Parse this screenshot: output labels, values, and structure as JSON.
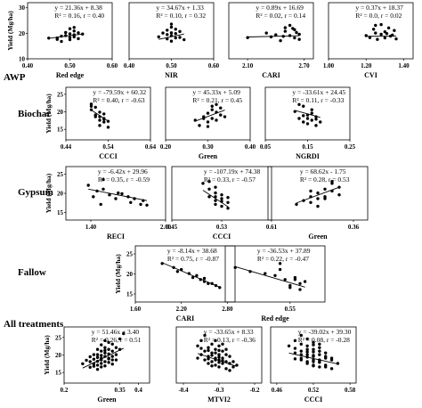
{
  "groups": [
    "AWP",
    "Biochar",
    "Gypsum",
    "Fallow",
    "All treatments"
  ],
  "chart_data": [
    {
      "type": "scatter",
      "group": "AWP",
      "xlabel": "Red edge",
      "ylabel": "Yield (Mg/ha)",
      "y_ticks": [
        10,
        20,
        30
      ],
      "xlim": [
        0.4,
        0.6
      ],
      "ylim": [
        10,
        32
      ],
      "x_ticks": [
        "0.40",
        "0.50",
        "0.60"
      ],
      "show_y_ticks": true,
      "eq": "y = 21.36x + 8.38",
      "stats": "R² = 0.16, r = 0.40",
      "line": {
        "slope": 21.36,
        "intercept": 8.38
      },
      "x": [
        0.45,
        0.47,
        0.48,
        0.49,
        0.49,
        0.5,
        0.5,
        0.5,
        0.51,
        0.51,
        0.51,
        0.52,
        0.52,
        0.53,
        0.47,
        0.5,
        0.48,
        0.51
      ],
      "y": [
        18.1,
        18.2,
        16.8,
        19.1,
        20.3,
        17.5,
        19.8,
        21.8,
        18.6,
        20.9,
        19.4,
        17.9,
        20.2,
        19.7,
        17.6,
        18.3,
        18.9,
        22.3
      ]
    },
    {
      "type": "scatter",
      "group": "AWP",
      "xlabel": "NIR",
      "ylabel": "",
      "y_ticks": [],
      "xlim": [
        0.4,
        0.6
      ],
      "ylim": [
        10,
        32
      ],
      "x_ticks": [
        "0.40",
        "0.50",
        "0.60"
      ],
      "show_y_ticks": false,
      "eq": "y = 34.67x + 1.33",
      "stats": "R² = 0.10, r = 0.32",
      "line": {
        "slope": 34.67,
        "intercept": 1.33
      },
      "x": [
        0.47,
        0.48,
        0.49,
        0.49,
        0.5,
        0.5,
        0.5,
        0.51,
        0.51,
        0.52,
        0.52,
        0.53,
        0.5,
        0.49,
        0.51,
        0.5
      ],
      "y": [
        18.6,
        20.1,
        17.8,
        21.2,
        19.1,
        22.4,
        16.9,
        19.9,
        21.6,
        18.4,
        20.7,
        17.5,
        23.6,
        19.5,
        18.2,
        20.2
      ]
    },
    {
      "type": "scatter",
      "group": "AWP",
      "xlabel": "CARI",
      "ylabel": "",
      "y_ticks": [],
      "xlim": [
        1.9,
        2.8
      ],
      "ylim": [
        10,
        32
      ],
      "x_ticks": [
        "2.10",
        "2.70"
      ],
      "show_y_ticks": false,
      "eq": "y = 0.89x + 16.69",
      "stats": "R² = 0.02, r = 0.14",
      "line": {
        "slope": 0.89,
        "intercept": 16.69
      },
      "x": [
        2.1,
        2.3,
        2.35,
        2.45,
        2.5,
        2.5,
        2.55,
        2.6,
        2.6,
        2.62,
        2.65,
        2.55,
        2.65,
        2.4,
        2.58,
        2.48
      ],
      "y": [
        18.3,
        20.1,
        18.6,
        17.1,
        20.8,
        22.2,
        19.1,
        21.4,
        18.2,
        20.3,
        19.6,
        23.1,
        17.6,
        19.4,
        21.9,
        18.8
      ]
    },
    {
      "type": "scatter",
      "group": "AWP",
      "xlabel": "CVI",
      "ylabel": "",
      "y_ticks": [],
      "xlim": [
        1.0,
        1.45
      ],
      "ylim": [
        10,
        32
      ],
      "x_ticks": [
        "1.00",
        "1.20",
        "1.40"
      ],
      "show_y_ticks": false,
      "eq": "y = 0.37x + 18.37",
      "stats": "R² = 0.0, r = 0.02",
      "line": {
        "slope": 0.37,
        "intercept": 18.37
      },
      "x": [
        1.2,
        1.22,
        1.24,
        1.25,
        1.26,
        1.28,
        1.3,
        1.3,
        1.32,
        1.34,
        1.35,
        1.36,
        1.28,
        1.33,
        1.25,
        1.31
      ],
      "y": [
        19.1,
        18.3,
        21.6,
        23.1,
        17.6,
        19.6,
        20.6,
        18.2,
        22.1,
        19.3,
        21.1,
        17.8,
        23.4,
        18.9,
        20.1,
        19.9
      ]
    },
    {
      "type": "scatter",
      "group": "Biochar",
      "xlabel": "CCCI",
      "ylabel": "Yield (Mg/ha)",
      "y_ticks": [
        15,
        20,
        25
      ],
      "xlim": [
        0.44,
        0.64
      ],
      "ylim": [
        12,
        27
      ],
      "x_ticks": [
        "0.44",
        "0.54",
        "0.64"
      ],
      "show_y_ticks": true,
      "eq": "y = -79.59x + 60.32",
      "stats": "R² = 0.40, r = -0.63",
      "line": {
        "slope": -79.59,
        "intercept": 60.32
      },
      "x": [
        0.5,
        0.5,
        0.51,
        0.51,
        0.52,
        0.52,
        0.52,
        0.53,
        0.53,
        0.53,
        0.54,
        0.54,
        0.51,
        0.52,
        0.53,
        0.5
      ],
      "y": [
        21.6,
        20.6,
        21.3,
        19.1,
        18.6,
        17.6,
        16.1,
        18.1,
        17.1,
        19.4,
        17.3,
        15.6,
        18.6,
        19.9,
        17.9,
        22.2
      ]
    },
    {
      "type": "scatter",
      "group": "Biochar",
      "xlabel": "Green",
      "ylabel": "",
      "y_ticks": [],
      "xlim": [
        0.2,
        0.4
      ],
      "ylim": [
        12,
        27
      ],
      "x_ticks": [
        "0.20",
        "0.30",
        "0.40"
      ],
      "show_y_ticks": false,
      "eq": "y = 45.33x + 5.09",
      "stats": "R² = 0.21, r = 0.45",
      "line": {
        "slope": 45.33,
        "intercept": 5.09
      },
      "x": [
        0.27,
        0.28,
        0.29,
        0.3,
        0.3,
        0.31,
        0.31,
        0.32,
        0.32,
        0.33,
        0.33,
        0.34,
        0.3,
        0.31,
        0.29,
        0.32
      ],
      "y": [
        17.6,
        16.1,
        18.6,
        17.1,
        19.6,
        18.1,
        20.6,
        17.6,
        22.1,
        19.1,
        21.1,
        18.6,
        15.8,
        21.6,
        18.1,
        19.9
      ]
    },
    {
      "type": "scatter",
      "group": "Biochar",
      "xlabel": "NGRDI",
      "ylabel": "",
      "y_ticks": [],
      "xlim": [
        0.05,
        0.25
      ],
      "ylim": [
        12,
        27
      ],
      "x_ticks": [
        "0.05",
        "0.15",
        "0.25"
      ],
      "show_y_ticks": false,
      "eq": "y = -33.61x + 24.45",
      "stats": "R² = 0.11, r = -0.33",
      "line": {
        "slope": -33.61,
        "intercept": 24.45
      },
      "x": [
        0.12,
        0.13,
        0.14,
        0.14,
        0.15,
        0.15,
        0.16,
        0.16,
        0.17,
        0.17,
        0.18,
        0.13,
        0.15,
        0.16,
        0.14,
        0.17
      ],
      "y": [
        20.1,
        18.1,
        21.6,
        17.1,
        19.1,
        16.6,
        20.6,
        17.6,
        18.6,
        16.1,
        17.1,
        22.1,
        18.1,
        19.6,
        18.9,
        17.9
      ]
    },
    {
      "type": "scatter",
      "group": "Gypsum",
      "xlabel": "RECI",
      "ylabel": "Yield (Mg/ha)",
      "y_ticks": [
        15,
        20,
        25
      ],
      "xlim": [
        1.2,
        2.0
      ],
      "ylim": [
        13,
        27
      ],
      "x_ticks": [
        "1.40",
        "2.00"
      ],
      "show_y_ticks": true,
      "eq": "y = -6.42x + 29.96",
      "stats": "R² = 0.35, r = -0.59",
      "line": {
        "slope": -6.42,
        "intercept": 29.96
      },
      "x": [
        1.38,
        1.42,
        1.45,
        1.48,
        1.5,
        1.55,
        1.6,
        1.65,
        1.7,
        1.72,
        1.75,
        1.8,
        1.82,
        1.85,
        1.5,
        1.62
      ],
      "y": [
        22.1,
        19.1,
        20.6,
        17.1,
        21.1,
        19.6,
        18.6,
        19.9,
        19.1,
        17.6,
        18.6,
        17.1,
        18.1,
        16.9,
        23.6,
        20.1
      ]
    },
    {
      "type": "scatter",
      "group": "Gypsum",
      "xlabel": "CCCI",
      "ylabel": "",
      "y_ticks": [],
      "xlim": [
        0.45,
        0.61
      ],
      "ylim": [
        13,
        27
      ],
      "x_ticks": [
        "0.45",
        "0.53",
        "0.61"
      ],
      "show_y_ticks": false,
      "eq": "y = -107.19x + 74.38",
      "stats": "R² = 0.33, r = -0.57",
      "line": {
        "slope": -107.19,
        "intercept": 74.38
      },
      "x": [
        0.5,
        0.51,
        0.51,
        0.52,
        0.52,
        0.52,
        0.53,
        0.53,
        0.53,
        0.54,
        0.54,
        0.51,
        0.52,
        0.53,
        0.54,
        0.52
      ],
      "y": [
        22.6,
        21.1,
        19.1,
        20.1,
        18.1,
        17.1,
        19.6,
        16.6,
        18.6,
        17.6,
        16.1,
        23.1,
        19.1,
        17.9,
        18.9,
        21.6
      ]
    },
    {
      "type": "scatter",
      "group": "Gypsum",
      "xlabel": "Green",
      "ylabel": "",
      "y_ticks": [],
      "xlim": [
        0.24,
        0.38
      ],
      "ylim": [
        13,
        27
      ],
      "x_ticks": [
        "0.36"
      ],
      "show_y_ticks": false,
      "eq": "y = 68.62x - 1.75",
      "stats": "R² = 0.28, r = 0.53",
      "line": {
        "slope": 68.62,
        "intercept": -1.75
      },
      "x": [
        0.28,
        0.29,
        0.3,
        0.3,
        0.31,
        0.31,
        0.32,
        0.32,
        0.33,
        0.33,
        0.34,
        0.34,
        0.31,
        0.32,
        0.3,
        0.33
      ],
      "y": [
        17.1,
        18.1,
        17.6,
        19.1,
        18.6,
        20.1,
        19.1,
        21.1,
        20.6,
        22.6,
        19.6,
        21.6,
        16.6,
        18.6,
        20.6,
        23.1
      ]
    },
    {
      "type": "scatter",
      "group": "Fallow",
      "xlabel": "CARI",
      "ylabel": "Yield (Mg/ha)",
      "y_ticks": [
        15,
        20,
        25
      ],
      "xlim": [
        1.6,
        2.9
      ],
      "ylim": [
        13,
        27
      ],
      "x_ticks": [
        "1.60",
        "2.20",
        "2.80"
      ],
      "show_y_ticks": true,
      "eq": "y = -8.14x + 38.68",
      "stats": "R² = 0.75, r = -0.87",
      "line": {
        "slope": -8.14,
        "intercept": 38.68
      },
      "x": [
        1.95,
        2.1,
        2.15,
        2.2,
        2.3,
        2.35,
        2.4,
        2.45,
        2.5,
        2.55,
        2.6,
        2.65,
        2.7,
        2.5
      ],
      "y": [
        22.6,
        21.6,
        20.6,
        21.1,
        20.1,
        19.1,
        19.6,
        18.6,
        18.1,
        17.6,
        17.6,
        17.1,
        16.6,
        18.9
      ]
    },
    {
      "type": "scatter",
      "group": "Fallow",
      "xlabel": "Red edge",
      "ylabel": "",
      "y_ticks": [],
      "xlim": [
        0.42,
        0.62
      ],
      "ylim": [
        13,
        27
      ],
      "x_ticks": [
        "0.55"
      ],
      "show_y_ticks": false,
      "eq": "y = -36.53x + 37.89",
      "stats": "R² = 0.22, r = -0.47",
      "line": {
        "slope": -36.53,
        "intercept": 37.89
      },
      "x": [
        0.44,
        0.47,
        0.5,
        0.52,
        0.53,
        0.54,
        0.55,
        0.56,
        0.57,
        0.58,
        0.55,
        0.53,
        0.56,
        0.57
      ],
      "y": [
        21.6,
        20.6,
        20.1,
        19.6,
        22.6,
        18.6,
        17.1,
        19.1,
        17.6,
        18.1,
        16.6,
        21.1,
        18.6,
        16.1
      ]
    },
    {
      "type": "scatter",
      "group": "All treatments",
      "xlabel": "Green",
      "ylabel": "Yield (Mg/ha)",
      "y_ticks": [
        15,
        20,
        25
      ],
      "xlim": [
        0.2,
        0.43
      ],
      "ylim": [
        12,
        28
      ],
      "x_ticks": [
        "0.2",
        "0.35",
        "0.4"
      ],
      "show_y_ticks": true,
      "eq": "y = 51.46x + 3.40",
      "stats": "R² = 0.26, r = 0.51",
      "line": {
        "slope": 51.46,
        "intercept": 3.4
      },
      "x": [
        0.25,
        0.26,
        0.27,
        0.27,
        0.28,
        0.28,
        0.28,
        0.29,
        0.29,
        0.29,
        0.3,
        0.3,
        0.3,
        0.3,
        0.31,
        0.31,
        0.31,
        0.31,
        0.32,
        0.32,
        0.32,
        0.32,
        0.33,
        0.33,
        0.33,
        0.34,
        0.34,
        0.35,
        0.35,
        0.36,
        0.29,
        0.3,
        0.31,
        0.32,
        0.28,
        0.3,
        0.31,
        0.33,
        0.27,
        0.29,
        0.3,
        0.32,
        0.34,
        0.31,
        0.29,
        0.33
      ],
      "y": [
        17.5,
        18.5,
        16.5,
        19.5,
        17.5,
        18.8,
        16.8,
        18.2,
        20.1,
        17.1,
        19.1,
        21.1,
        17.6,
        18.6,
        20.6,
        18.1,
        19.6,
        22.1,
        19.1,
        21.6,
        17.9,
        20.3,
        21.1,
        18.6,
        23.1,
        20.1,
        22.1,
        21.6,
        24.6,
        26.1,
        15.9,
        19.9,
        16.9,
        18.9,
        20.1,
        16.6,
        21.3,
        19.6,
        18.1,
        21.6,
        22.9,
        23.6,
        18.6,
        24.1,
        19.3,
        17.4
      ]
    },
    {
      "type": "scatter",
      "group": "All treatments",
      "xlabel": "MTVI2",
      "ylabel": "",
      "y_ticks": [],
      "xlim": [
        -0.42,
        -0.18
      ],
      "ylim": [
        12,
        28
      ],
      "x_ticks": [
        "-0.4",
        "-0.3",
        "-0.2"
      ],
      "show_y_ticks": false,
      "eq": "y = -33.65x + 8.33",
      "stats": "R² = 0.13, r = -0.36",
      "line": {
        "slope": -33.65,
        "intercept": 8.33
      },
      "x": [
        -0.36,
        -0.35,
        -0.35,
        -0.34,
        -0.34,
        -0.33,
        -0.33,
        -0.33,
        -0.32,
        -0.32,
        -0.32,
        -0.31,
        -0.31,
        -0.31,
        -0.3,
        -0.3,
        -0.3,
        -0.3,
        -0.29,
        -0.29,
        -0.29,
        -0.28,
        -0.28,
        -0.28,
        -0.27,
        -0.27,
        -0.26,
        -0.26,
        -0.25,
        -0.34,
        -0.33,
        -0.32,
        -0.31,
        -0.3,
        -0.29,
        -0.31,
        -0.3,
        -0.32,
        -0.28,
        -0.33,
        -0.35,
        -0.29,
        -0.3,
        -0.27,
        -0.31,
        -0.36
      ],
      "y": [
        22.6,
        20.1,
        24.1,
        21.1,
        18.6,
        22.1,
        19.6,
        17.6,
        20.6,
        18.1,
        23.1,
        19.1,
        21.6,
        17.1,
        18.6,
        20.1,
        16.6,
        22.6,
        19.1,
        17.6,
        21.1,
        18.1,
        20.1,
        16.1,
        17.6,
        19.6,
        18.1,
        16.6,
        17.1,
        25.6,
        21.3,
        19.9,
        18.6,
        17.9,
        23.1,
        24.1,
        19.4,
        16.9,
        21.6,
        18.9,
        21.9,
        18.4,
        21.3,
        15.6,
        20.6,
        19.1
      ]
    },
    {
      "type": "scatter",
      "group": "All treatments",
      "xlabel": "CCCI",
      "ylabel": "",
      "y_ticks": [],
      "xlim": [
        0.45,
        0.59
      ],
      "ylim": [
        12,
        28
      ],
      "x_ticks": [
        "0.46",
        "0.52",
        "0.58"
      ],
      "show_y_ticks": false,
      "eq": "y = -39.02x + 39.30",
      "stats": "R² = 0.08, r = -0.28",
      "line": {
        "slope": -39.02,
        "intercept": 39.3
      },
      "x": [
        0.48,
        0.49,
        0.49,
        0.5,
        0.5,
        0.5,
        0.51,
        0.51,
        0.51,
        0.51,
        0.52,
        0.52,
        0.52,
        0.52,
        0.52,
        0.53,
        0.53,
        0.53,
        0.53,
        0.54,
        0.54,
        0.54,
        0.55,
        0.55,
        0.56,
        0.5,
        0.51,
        0.52,
        0.53,
        0.54,
        0.49,
        0.51,
        0.52,
        0.53,
        0.5,
        0.52,
        0.51,
        0.53,
        0.54,
        0.5,
        0.52,
        0.55,
        0.49,
        0.51,
        0.53,
        0.52
      ],
      "y": [
        22.6,
        20.6,
        24.1,
        21.1,
        19.1,
        23.1,
        20.1,
        18.1,
        22.6,
        17.6,
        19.6,
        21.6,
        17.1,
        23.6,
        18.6,
        20.1,
        16.6,
        18.6,
        22.1,
        19.1,
        17.1,
        20.6,
        18.6,
        16.1,
        17.6,
        25.6,
        21.6,
        19.9,
        18.1,
        16.6,
        21.9,
        19.4,
        20.9,
        17.9,
        18.6,
        22.9,
        24.6,
        21.1,
        19.6,
        20.1,
        16.9,
        19.1,
        18.9,
        20.9,
        23.1,
        18.1
      ]
    }
  ]
}
